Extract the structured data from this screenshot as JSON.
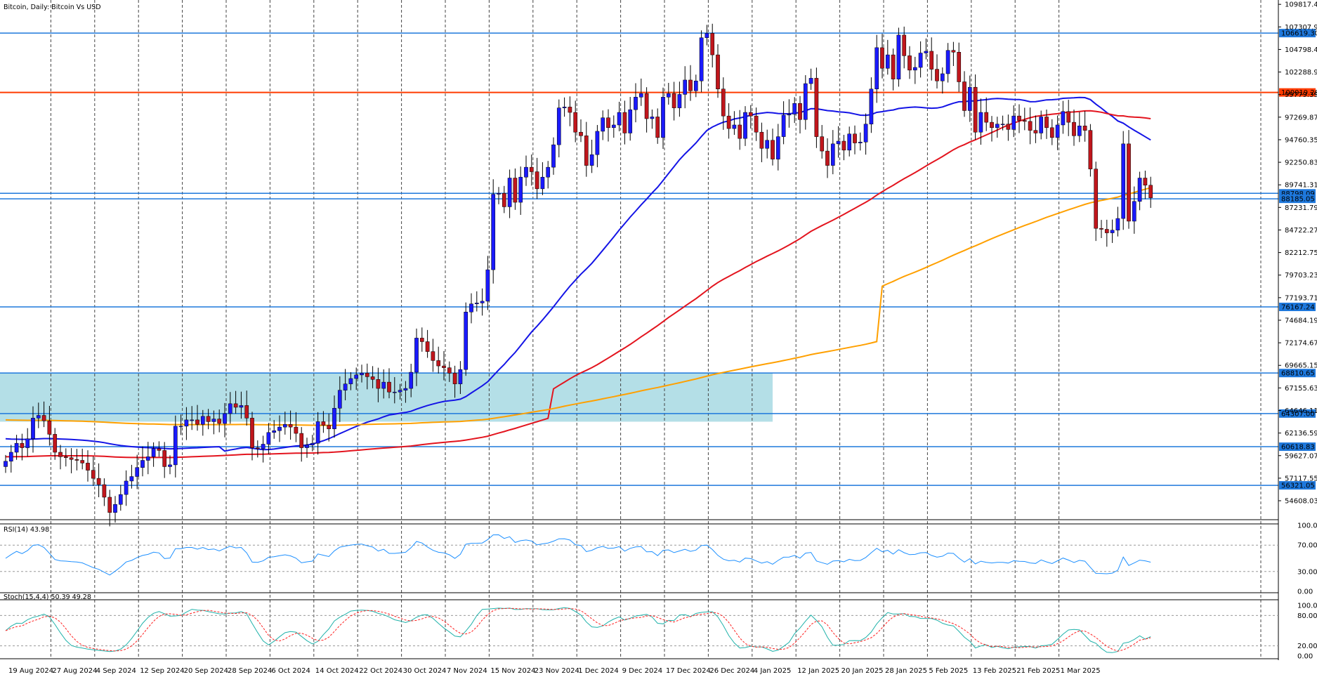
{
  "title": "Bitcoin, Daily:  Bitcoin Vs USD",
  "rsi_label": "RSI(14) 43.98",
  "stoch_label": "Stoch(15,4,4) 50.39 49.28",
  "colors": {
    "bull": "#1a1aff",
    "bear": "#c0161c",
    "sma_fast": "#1414e6",
    "sma_mid": "#e3141e",
    "sma_slow": "#ffa000",
    "hline": "#1e78dc",
    "hline_key": "#ff3c00",
    "zone": "#b0dde6",
    "indicator": "#1e90ff",
    "signal": "#ff2020"
  },
  "chart_data": {
    "type": "candlestick",
    "ylim": [
      52500,
      110300
    ],
    "price_ticks": [
      "109817.47",
      "107307.95",
      "104798.43",
      "102288.91",
      "99779.39",
      "97269.87",
      "94760.35",
      "92250.83",
      "89741.31",
      "87231.79",
      "84722.27",
      "82212.75",
      "79703.23",
      "77193.71",
      "74684.19",
      "72174.67",
      "69665.15",
      "67155.63",
      "64646.11",
      "62136.59",
      "59627.07",
      "57117.55",
      "54608.03"
    ],
    "date_labels": [
      "19 Aug 2024",
      "27 Aug 2024",
      "4 Sep 2024",
      "12 Sep 2024",
      "20 Sep 2024",
      "28 Sep 2024",
      "6 Oct 2024",
      "14 Oct 2024",
      "22 Oct 2024",
      "30 Oct 2024",
      "7 Nov 2024",
      "15 Nov 2024",
      "23 Nov 2024",
      "1 Dec 2024",
      "9 Dec 2024",
      "17 Dec 2024",
      "26 Dec 2024",
      "4 Jan 2025",
      "12 Jan 2025",
      "20 Jan 2025",
      "28 Jan 2025",
      "5 Feb 2025",
      "13 Feb 2025",
      "21 Feb 2025",
      "1 Mar 2025"
    ],
    "horizontal_levels": [
      {
        "value": 106619.3,
        "label": "106619.30"
      },
      {
        "value": 100019.28,
        "label": "100019.28",
        "key": true
      },
      {
        "value": 88798.09,
        "label": "88798.09"
      },
      {
        "value": 88185.05,
        "label": "88185.05"
      },
      {
        "value": 76167.24,
        "label": "76167.24"
      },
      {
        "value": 68810.65,
        "label": "68810.65"
      },
      {
        "value": 64307.0,
        "label": "64307.00"
      },
      {
        "value": 60618.83,
        "label": "60618.83"
      },
      {
        "value": 56321.05,
        "label": "56321.05"
      }
    ],
    "zone": {
      "from_date": "19 Aug 2024",
      "to_date": "4 Jan 2025",
      "top": 68810.65,
      "bottom": 63400
    },
    "closes": [
      59000,
      60000,
      61000,
      60500,
      61500,
      63800,
      64100,
      63500,
      62000,
      60000,
      59500,
      59400,
      59200,
      59100,
      58800,
      58000,
      57100,
      56400,
      55000,
      53300,
      54200,
      55300,
      56800,
      57300,
      58300,
      59100,
      59500,
      60400,
      60200,
      58400,
      58600,
      62900,
      62900,
      63600,
      63600,
      63100,
      64000,
      63400,
      63700,
      63200,
      64300,
      65400,
      65000,
      65200,
      63800,
      60500,
      60400,
      60900,
      62200,
      62400,
      62800,
      63100,
      62800,
      62100,
      60500,
      60800,
      61000,
      63400,
      63000,
      62600,
      64900,
      66900,
      67600,
      68200,
      68600,
      68800,
      68400,
      68100,
      67100,
      67800,
      66700,
      66700,
      66900,
      67100,
      68900,
      72700,
      72300,
      71200,
      70200,
      69600,
      69400,
      68800,
      67600,
      69200,
      75600,
      76500,
      76600,
      76800,
      80300,
      88700,
      88800,
      87300,
      90500,
      87800,
      90600,
      91700,
      91200,
      89300,
      90600,
      91700,
      94200,
      98300,
      98400,
      97800,
      95600,
      95200,
      91900,
      93100,
      95700,
      97200,
      96100,
      96400,
      97800,
      95500,
      98100,
      99500,
      99900,
      97100,
      97300,
      95000,
      99500,
      99900,
      98300,
      99800,
      101400,
      100200,
      101300,
      106100,
      106600,
      104200,
      100400,
      97400,
      96000,
      96400,
      94900,
      97800,
      97400,
      95600,
      93800,
      94700,
      92600,
      95100,
      97500,
      97600,
      98800,
      97000,
      101000,
      101600,
      95100,
      93500,
      91900,
      94300,
      94600,
      93600,
      95400,
      94400,
      94500,
      96500,
      100400,
      105000,
      102700,
      104200,
      101500,
      106400,
      104100,
      102500,
      102800,
      104400,
      104600,
      102600,
      101300,
      102100,
      104700,
      104500,
      101200,
      98000,
      100600,
      95600,
      97800,
      96700,
      96100,
      96500,
      96500,
      95900,
      97400,
      96900,
      96800,
      95800,
      95500,
      97300,
      96100,
      95000,
      96400,
      97900,
      96700,
      95200,
      96300,
      95800,
      91500,
      84900,
      84800,
      84400,
      84700,
      86000,
      94300,
      85700,
      87900,
      90500,
      89700,
      88300
    ]
  }
}
